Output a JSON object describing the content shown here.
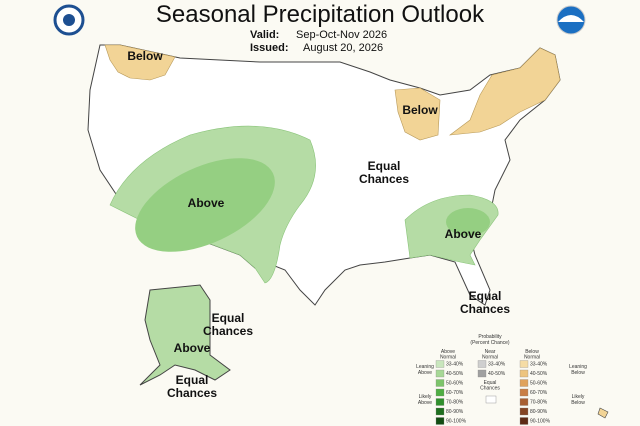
{
  "header": {
    "title": "Seasonal Precipitation Outlook",
    "valid_label": "Valid:",
    "valid": "Sep-Oct-Nov 2026",
    "issued_label": "Issued:",
    "issued": "August 20, 2026"
  },
  "map": {
    "labels": [
      {
        "lines": [
          "Below"
        ]
      },
      {
        "lines": [
          "Below"
        ]
      },
      {
        "lines": [
          "Above"
        ]
      },
      {
        "lines": [
          "Equal",
          "Chances"
        ]
      },
      {
        "lines": [
          "Above"
        ]
      },
      {
        "lines": [
          "Equal",
          "Chances"
        ]
      },
      {
        "lines": [
          "Equal",
          "Chances"
        ]
      },
      {
        "lines": [
          "Above"
        ]
      },
      {
        "lines": [
          "Equal",
          "Chances"
        ]
      }
    ]
  },
  "legend": {
    "title": [
      "Probability",
      "(Percent Chance)"
    ],
    "columns": [
      {
        "heading": [
          "Above",
          "Normal"
        ],
        "bins": [
          "33-40%",
          "40-50%",
          "50-60%",
          "60-70%",
          "70-80%",
          "80-90%",
          "90-100%"
        ]
      },
      {
        "heading": [
          "Near",
          "Normal"
        ],
        "bins": [
          "33-40%",
          "40-50%"
        ]
      },
      {
        "heading": [
          "Below",
          "Normal"
        ],
        "bins": [
          "33-40%",
          "40-50%",
          "50-60%",
          "60-70%",
          "70-80%",
          "80-90%",
          "90-100%"
        ]
      }
    ],
    "leaning_above": [
      "Leaning",
      "Above"
    ],
    "likely_above": [
      "Likely",
      "Above"
    ],
    "leaning_below": [
      "Leaning",
      "Below"
    ],
    "likely_below": [
      "Likely",
      "Below"
    ],
    "equal_chances": [
      "Equal",
      "Chances"
    ]
  }
}
